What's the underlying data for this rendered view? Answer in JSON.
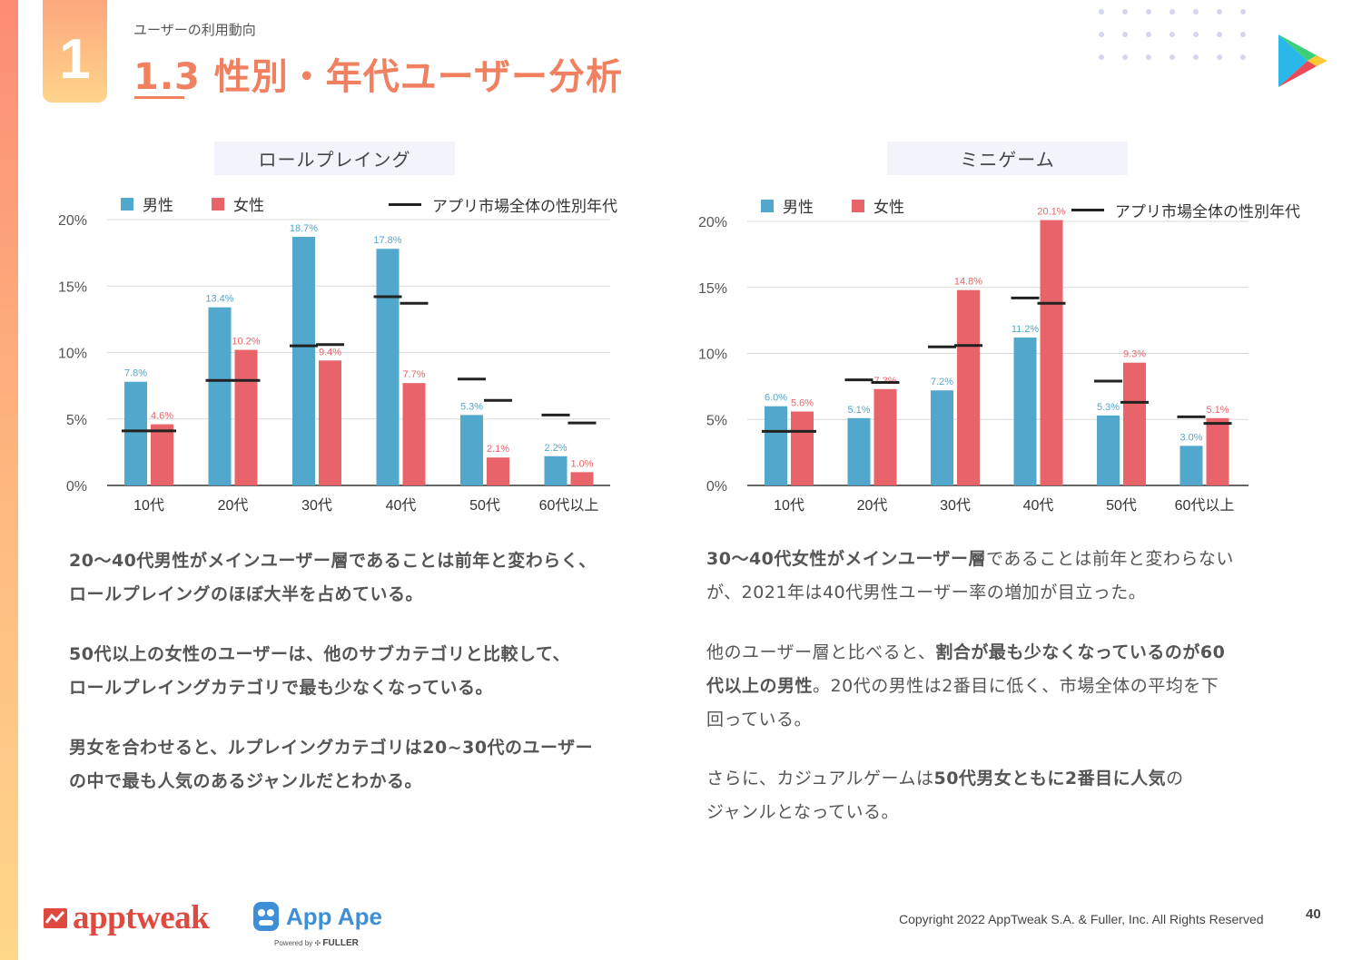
{
  "header": {
    "section_number": "1",
    "subtitle": "ユーザーの利用動向",
    "title": "1.3 性別・年代ユーザー分析"
  },
  "colors": {
    "male": "#52a7cc",
    "female": "#e8646a",
    "market_line": "#222222",
    "accent": "#f08060"
  },
  "chart_data": [
    {
      "type": "bar",
      "title": "ロールプレイング",
      "categories": [
        "10代",
        "20代",
        "30代",
        "40代",
        "50代",
        "60代以上"
      ],
      "series": [
        {
          "name": "男性",
          "values": [
            7.8,
            13.4,
            18.7,
            17.8,
            5.3,
            2.2
          ],
          "labels": [
            "7.8%",
            "13.4%",
            "18.7%",
            "17.8%",
            "5.3%",
            "2.2%"
          ]
        },
        {
          "name": "女性",
          "values": [
            4.6,
            10.2,
            9.4,
            7.7,
            2.1,
            1.0
          ],
          "labels": [
            "4.6%",
            "10.2%",
            "9.4%",
            "7.7%",
            "2.1%",
            "1.0%"
          ]
        }
      ],
      "market_lines": {
        "name": "アプリ市場全体の性別年代",
        "male": [
          4.1,
          7.9,
          10.5,
          14.2,
          8.0,
          5.3
        ],
        "female": [
          4.1,
          7.9,
          10.6,
          13.7,
          6.4,
          4.7
        ]
      },
      "yticks": [
        "0%",
        "5%",
        "10%",
        "15%",
        "20%"
      ],
      "ylim": [
        0,
        20
      ],
      "xlabel": "",
      "ylabel": "",
      "grid": true,
      "legend": "top"
    },
    {
      "type": "bar",
      "title": "ミニゲーム",
      "categories": [
        "10代",
        "20代",
        "30代",
        "40代",
        "50代",
        "60代以上"
      ],
      "series": [
        {
          "name": "男性",
          "values": [
            6.0,
            5.1,
            7.2,
            11.2,
            5.3,
            3.0
          ],
          "labels": [
            "6.0%",
            "5.1%",
            "7.2%",
            "11.2%",
            "5.3%",
            "3.0%"
          ]
        },
        {
          "name": "女性",
          "values": [
            5.6,
            7.3,
            14.8,
            20.1,
            9.3,
            5.1
          ],
          "labels": [
            "5.6%",
            "7.3%",
            "14.8%",
            "20.1%",
            "9.3%",
            "5.1%"
          ]
        }
      ],
      "market_lines": {
        "name": "アプリ市場全体の性別年代",
        "male": [
          4.1,
          8.0,
          10.5,
          14.2,
          7.9,
          5.2
        ],
        "female": [
          4.1,
          7.8,
          10.6,
          13.8,
          6.3,
          4.7
        ]
      },
      "yticks": [
        "0%",
        "5%",
        "10%",
        "15%",
        "20%"
      ],
      "ylim": [
        0,
        20
      ],
      "xlabel": "",
      "ylabel": "",
      "grid": true,
      "legend": "top"
    }
  ],
  "legend": {
    "male": "男性",
    "female": "女性",
    "market": "アプリ市場全体の性別年代"
  },
  "left_text": [
    [
      {
        "t": "20〜40代男性がメインユーザー層であることは前年と変わらく、",
        "b": true
      },
      {
        "t": "\n",
        "b": false
      },
      {
        "t": "ロールプレイングのほぼ大半を占めている。",
        "b": true
      }
    ],
    [
      {
        "t": "50代以上の女性のユーザーは、他のサブカテゴリと比較して、",
        "b": true
      },
      {
        "t": "\n",
        "b": false
      },
      {
        "t": "ロールプレイングカテゴリで最も少なくなっている。",
        "b": true
      }
    ],
    [
      {
        "t": "男女を合わせると、ルプレイングカテゴリは20~30代のユーザー",
        "b": true
      },
      {
        "t": "\n",
        "b": false
      },
      {
        "t": "の中で最も人気のあるジャンルだとわかる。",
        "b": true
      }
    ]
  ],
  "right_text": [
    [
      {
        "t": "30〜40代女性がメインユーザー層",
        "b": true
      },
      {
        "t": "であることは前年と変わらない",
        "b": false
      },
      {
        "t": "\n",
        "b": false
      },
      {
        "t": "が、2021年は40代男性ユーザー率の増加が目立った。",
        "b": false
      }
    ],
    [
      {
        "t": "他のユーザー層と比べると、",
        "b": false
      },
      {
        "t": "割合が最も少なくなっているのが60",
        "b": true
      },
      {
        "t": "\n",
        "b": false
      },
      {
        "t": "代以上の男性",
        "b": true
      },
      {
        "t": "。20代の男性は2番目に低く、市場全体の平均を下",
        "b": false
      },
      {
        "t": "\n",
        "b": false
      },
      {
        "t": "回っている。",
        "b": false
      }
    ],
    [
      {
        "t": "さらに、カジュアルゲームは",
        "b": false
      },
      {
        "t": "50代男女ともに2番目に人気",
        "b": true
      },
      {
        "t": "の",
        "b": false
      },
      {
        "t": "\n",
        "b": false
      },
      {
        "t": "ジャンルとなっている。",
        "b": false
      }
    ]
  ],
  "footer": {
    "apptweak": "apptweak",
    "appape": "App Ape",
    "powered_by": "Powered by",
    "fuller": "FULLER",
    "copyright": "Copyright 2022 AppTweak S.A. & Fuller, Inc. All Rights Reserved",
    "page_number": "40"
  },
  "icons": {
    "play_store": "google-play-icon",
    "apptweak_logo": "apptweak-chart-icon",
    "appape_logo": "app-ape-monkey-icon",
    "fuller_logo": "fuller-icon"
  }
}
